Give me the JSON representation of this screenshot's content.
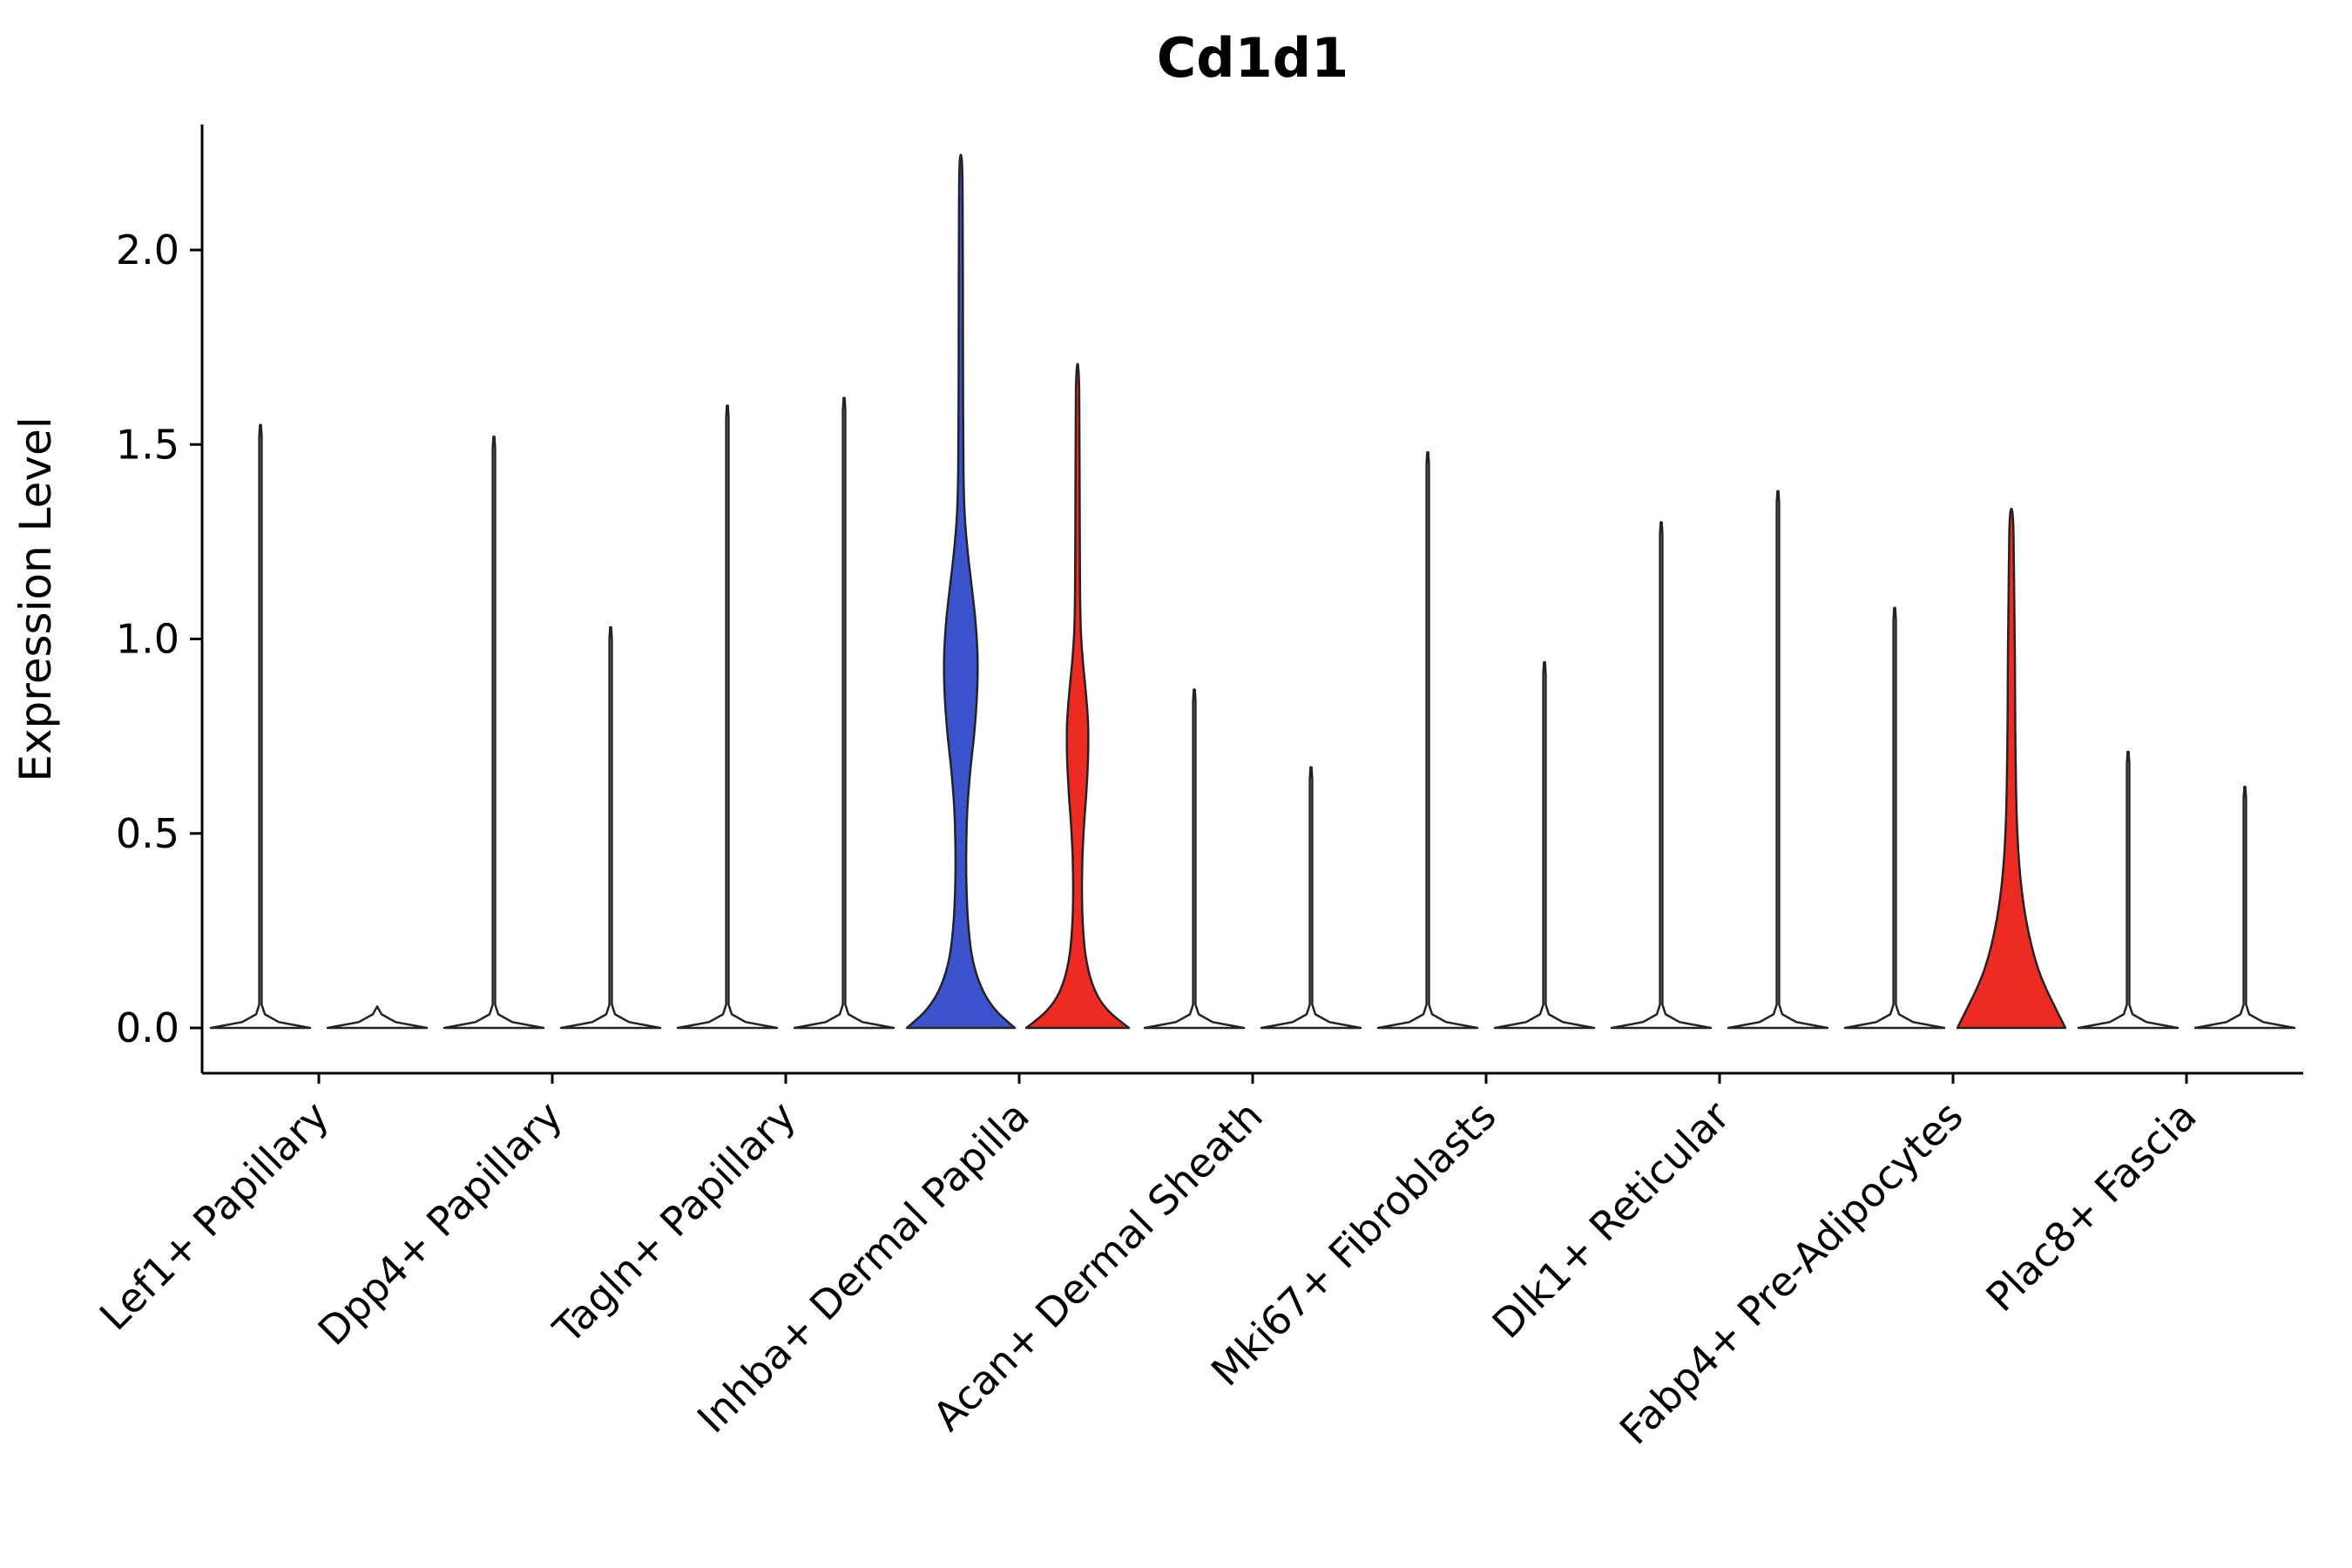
{
  "title": "Cd1d1",
  "chart_data": {
    "type": "violin",
    "title": "Cd1d1",
    "ylabel": "Expression Level",
    "xlabel": "",
    "yticks": [
      0.0,
      0.5,
      1.0,
      1.5,
      2.0
    ],
    "ylim": [
      -0.07,
      2.35
    ],
    "legend": "none",
    "grid": false,
    "categories": [
      "Lef1+ Papillary",
      "Dpp4+ Papillary",
      "Tagln+ Papillary",
      "Inhba+ Dermal Papilla",
      "Acan+ Dermal Sheath",
      "Mki67+ Fibroblasts",
      "Dlk1+ Reticular",
      "Fabp4+ Pre-Adipocytes",
      "Plac8+ Fascia"
    ],
    "groups": [
      "blue",
      "red"
    ],
    "colors": {
      "blue": "#3b53cd",
      "red": "#ee2b23",
      "outline": "#232323"
    },
    "series": [
      {
        "group": "blue",
        "max_expression": [
          1.55,
          1.52,
          1.6,
          2.24,
          0.87,
          1.48,
          1.3,
          1.08,
          0.71
        ]
      },
      {
        "group": "red",
        "max_expression": [
          0.0,
          1.03,
          1.62,
          1.7,
          0.67,
          0.94,
          1.38,
          1.33,
          0.62
        ]
      }
    ],
    "violins": [
      {
        "category_index": 0,
        "group": "blue",
        "max": 1.55,
        "filled": false
      },
      {
        "category_index": 0,
        "group": "red",
        "max": 0.0,
        "filled": false
      },
      {
        "category_index": 1,
        "group": "blue",
        "max": 1.52,
        "filled": false
      },
      {
        "category_index": 1,
        "group": "red",
        "max": 1.03,
        "filled": false
      },
      {
        "category_index": 2,
        "group": "blue",
        "max": 1.6,
        "filled": false
      },
      {
        "category_index": 2,
        "group": "red",
        "max": 1.62,
        "filled": false
      },
      {
        "category_index": 3,
        "group": "blue",
        "max": 2.24,
        "filled": true,
        "profile": [
          [
            0,
            1.0
          ],
          [
            0.04,
            0.68
          ],
          [
            0.08,
            0.47
          ],
          [
            0.13,
            0.31
          ],
          [
            0.19,
            0.2
          ],
          [
            0.27,
            0.135
          ],
          [
            0.36,
            0.105
          ],
          [
            0.46,
            0.1
          ],
          [
            0.56,
            0.12
          ],
          [
            0.66,
            0.175
          ],
          [
            0.76,
            0.25
          ],
          [
            0.86,
            0.3
          ],
          [
            0.95,
            0.31
          ],
          [
            1.04,
            0.275
          ],
          [
            1.13,
            0.205
          ],
          [
            1.22,
            0.13
          ],
          [
            1.31,
            0.075
          ],
          [
            1.42,
            0.05
          ],
          [
            1.6,
            0.042
          ],
          [
            1.9,
            0.038
          ],
          [
            2.1,
            0.034
          ],
          [
            2.2,
            0.028
          ],
          [
            2.24,
            0.012
          ]
        ]
      },
      {
        "category_index": 3,
        "group": "red",
        "max": 1.7,
        "filled": true,
        "profile": [
          [
            0,
            0.95
          ],
          [
            0.04,
            0.6
          ],
          [
            0.08,
            0.38
          ],
          [
            0.13,
            0.235
          ],
          [
            0.19,
            0.145
          ],
          [
            0.26,
            0.1
          ],
          [
            0.34,
            0.082
          ],
          [
            0.43,
            0.088
          ],
          [
            0.52,
            0.12
          ],
          [
            0.61,
            0.165
          ],
          [
            0.7,
            0.195
          ],
          [
            0.78,
            0.195
          ],
          [
            0.86,
            0.155
          ],
          [
            0.94,
            0.1
          ],
          [
            1.02,
            0.062
          ],
          [
            1.12,
            0.046
          ],
          [
            1.3,
            0.04
          ],
          [
            1.5,
            0.036
          ],
          [
            1.64,
            0.03
          ],
          [
            1.7,
            0.012
          ]
        ]
      },
      {
        "category_index": 4,
        "group": "blue",
        "max": 0.87,
        "filled": false
      },
      {
        "category_index": 4,
        "group": "red",
        "max": 0.67,
        "filled": false
      },
      {
        "category_index": 5,
        "group": "blue",
        "max": 1.48,
        "filled": false
      },
      {
        "category_index": 5,
        "group": "red",
        "max": 0.94,
        "filled": false
      },
      {
        "category_index": 6,
        "group": "blue",
        "max": 1.3,
        "filled": false
      },
      {
        "category_index": 6,
        "group": "red",
        "max": 1.38,
        "filled": false
      },
      {
        "category_index": 7,
        "group": "blue",
        "max": 1.08,
        "filled": false
      },
      {
        "category_index": 7,
        "group": "red",
        "max": 1.33,
        "filled": true,
        "profile": [
          [
            0,
            1.0
          ],
          [
            0.05,
            0.82
          ],
          [
            0.1,
            0.645
          ],
          [
            0.15,
            0.5
          ],
          [
            0.21,
            0.375
          ],
          [
            0.28,
            0.27
          ],
          [
            0.35,
            0.195
          ],
          [
            0.43,
            0.14
          ],
          [
            0.52,
            0.105
          ],
          [
            0.62,
            0.085
          ],
          [
            0.72,
            0.075
          ],
          [
            0.82,
            0.07
          ],
          [
            0.92,
            0.066
          ],
          [
            1.02,
            0.06
          ],
          [
            1.12,
            0.052
          ],
          [
            1.22,
            0.044
          ],
          [
            1.29,
            0.036
          ],
          [
            1.33,
            0.014
          ]
        ]
      },
      {
        "category_index": 8,
        "group": "blue",
        "max": 0.71,
        "filled": false
      },
      {
        "category_index": 8,
        "group": "red",
        "max": 0.62,
        "filled": false
      }
    ]
  }
}
